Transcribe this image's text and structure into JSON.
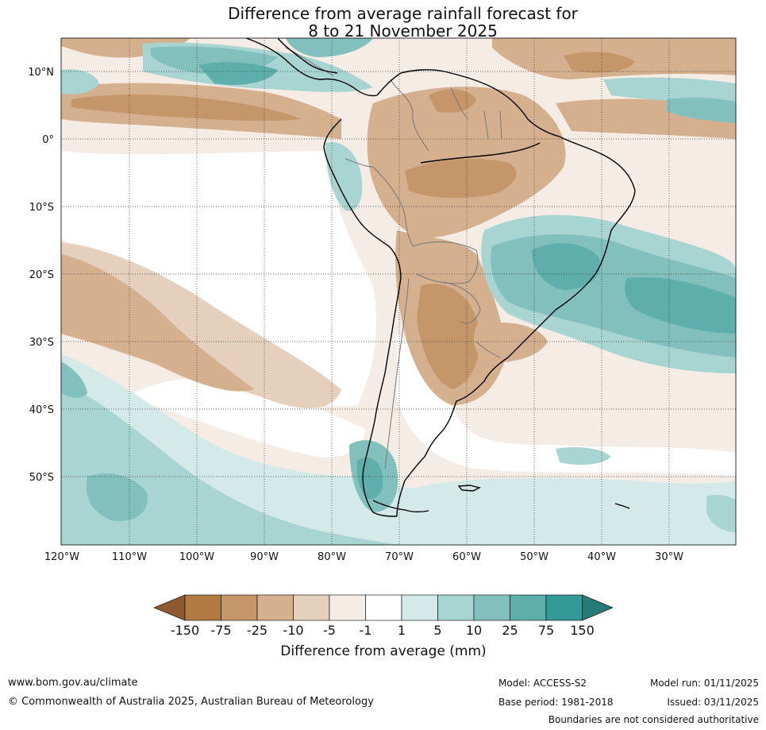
{
  "title": {
    "line1": "Difference from average rainfall forecast for",
    "line2": "8 to 21 November 2025"
  },
  "map": {
    "lon_labels": [
      "120°W",
      "110°W",
      "100°W",
      "90°W",
      "80°W",
      "70°W",
      "60°W",
      "50°W",
      "40°W",
      "30°W"
    ],
    "lat_labels": [
      "10°N",
      "0°",
      "10°S",
      "20°S",
      "30°S",
      "40°S",
      "50°S"
    ]
  },
  "colorbar": {
    "title": "Difference from average (mm)",
    "tick_labels": [
      "-150",
      "-75",
      "-25",
      "-10",
      "-5",
      "-1",
      "1",
      "5",
      "10",
      "25",
      "75",
      "150"
    ],
    "colors": [
      "#8c5a2e",
      "#b07a42",
      "#c4966a",
      "#d4b08e",
      "#e5cfbd",
      "#f5ece6",
      "#ffffff",
      "#d4eae8",
      "#a8d4d2",
      "#82c0be",
      "#5eaeab",
      "#339a97",
      "#287a78"
    ]
  },
  "footer": {
    "url": "www.bom.gov.au/climate",
    "copyright": "© Commonwealth of Australia 2025, Australian Bureau of Meteorology",
    "model": "Model: ACCESS-S2",
    "base_period": "Base period: 1981-2018",
    "model_run": "Model run: 01/11/2025",
    "issued": "Issued: 03/11/2025",
    "disclaimer": "Boundaries are not considered authoritative"
  }
}
